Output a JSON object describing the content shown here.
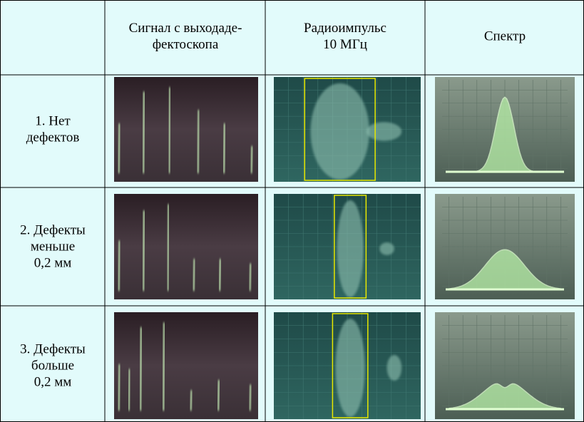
{
  "table": {
    "header": {
      "signal": [
        "Сигнал с выходаде-",
        "фектоскопа"
      ],
      "pulse": [
        "Радиоимпульс",
        "10 МГц"
      ],
      "spectrum": [
        "Спектр"
      ]
    },
    "rows": [
      [
        "1. Нет",
        "дефектов"
      ],
      [
        "2. Дефекты",
        "меньше",
        "0,2 мм"
      ],
      [
        "3. Дефекты",
        "больше",
        "0,2 мм"
      ]
    ]
  }
}
